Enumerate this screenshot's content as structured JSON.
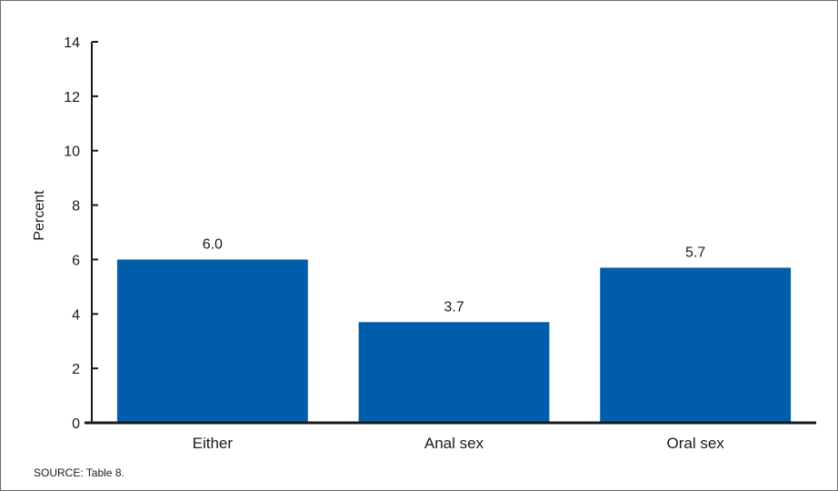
{
  "chart_data": {
    "type": "bar",
    "title": "",
    "xlabel": "",
    "ylabel": "Percent",
    "ylim": [
      0,
      14
    ],
    "yticks": [
      0,
      2,
      4,
      6,
      8,
      10,
      12,
      14
    ],
    "categories": [
      "Either",
      "Anal sex",
      "Oral sex"
    ],
    "values": [
      6.0,
      3.7,
      5.7
    ],
    "value_labels": [
      "6.0",
      "3.7",
      "5.7"
    ],
    "bar_color": "#005dab",
    "grid": false,
    "legend": "none"
  },
  "footer": {
    "source": "SOURCE: Table 8."
  }
}
